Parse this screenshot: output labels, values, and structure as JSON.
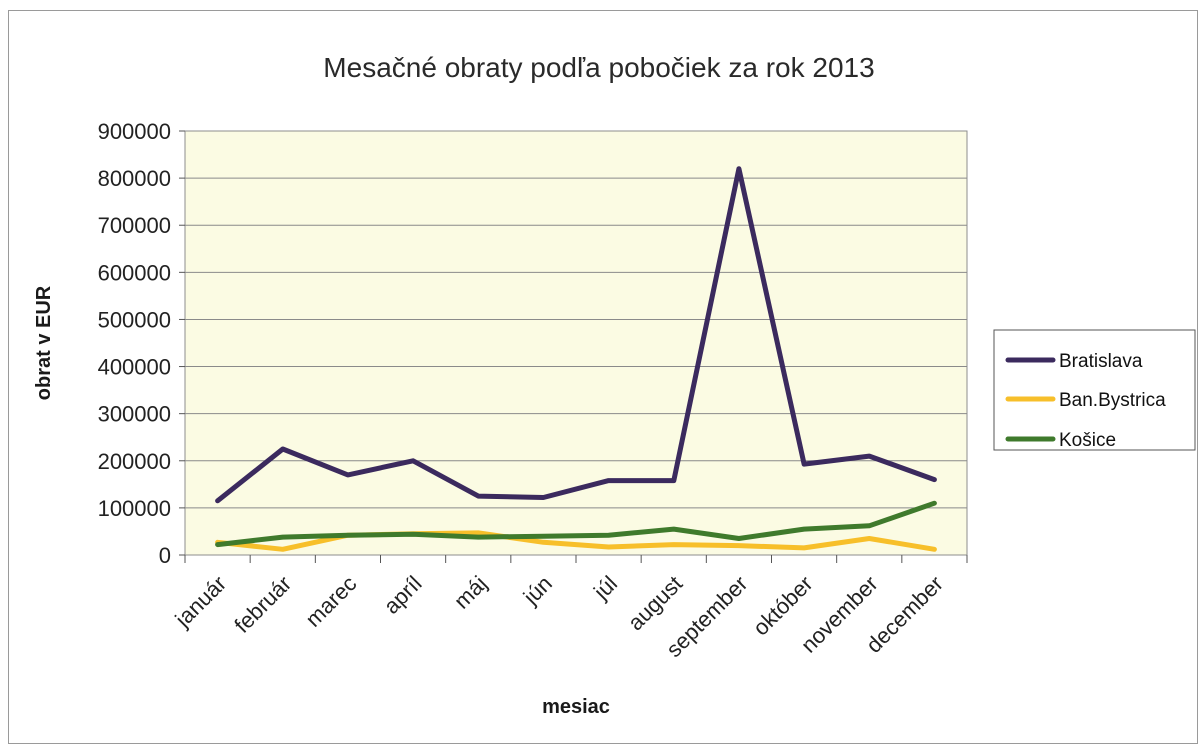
{
  "chart_data": {
    "type": "line",
    "title": "Mesačné obraty podľa pobočiek za rok 2013",
    "xlabel": "mesiac",
    "ylabel": "obrat v EUR",
    "categories": [
      "január",
      "február",
      "marec",
      "apríl",
      "máj",
      "jún",
      "júl",
      "august",
      "september",
      "október",
      "november",
      "december"
    ],
    "ylim": [
      0,
      900000
    ],
    "yticks": [
      "900000",
      "800000",
      "700000",
      "600000",
      "500000",
      "400000",
      "300000",
      "200000",
      "100000",
      "0"
    ],
    "grid": true,
    "legend_position": "right",
    "plot_background": "#fbfbe3",
    "series": [
      {
        "name": "Bratislava",
        "color": "#3b2a5e",
        "values": [
          115000,
          225000,
          170000,
          200000,
          125000,
          122000,
          158000,
          158000,
          820000,
          193000,
          210000,
          160000
        ]
      },
      {
        "name": "Ban.Bystrica",
        "color": "#f7bf2a",
        "values": [
          27000,
          12000,
          42000,
          45000,
          47000,
          27000,
          17000,
          22000,
          20000,
          15000,
          35000,
          12000
        ]
      },
      {
        "name": "Košice",
        "color": "#3f7a2c",
        "values": [
          22000,
          38000,
          42000,
          44000,
          38000,
          40000,
          42000,
          55000,
          35000,
          55000,
          62000,
          110000
        ]
      }
    ]
  }
}
